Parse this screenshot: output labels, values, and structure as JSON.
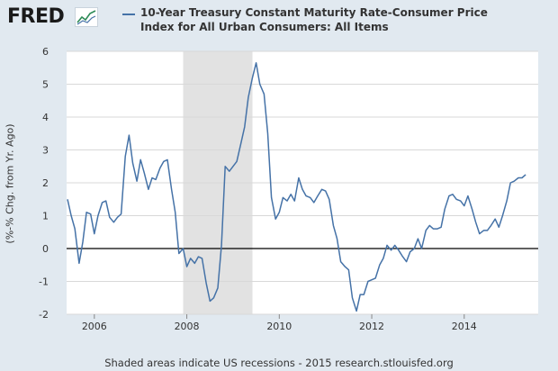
{
  "logo": {
    "text": "FRED",
    "icon": "line-chart-icon"
  },
  "legend": {
    "series_name": "10-Year Treasury Constant Maturity Rate-Consumer Price Index for All Urban Consumers: All Items",
    "color": "#4572a7"
  },
  "footer": {
    "text": "Shaded areas indicate US recessions - 2015 research.stlouisfed.org"
  },
  "chart_data": {
    "type": "line",
    "title": "",
    "xlabel": "",
    "ylabel": "(%-% Chg. from Yr. Ago)",
    "xlim": [
      2005.4,
      2015.6
    ],
    "ylim": [
      -2,
      6
    ],
    "y_ticks": [
      -2,
      -1,
      0,
      1,
      2,
      3,
      4,
      5,
      6
    ],
    "x_ticks": [
      "2006",
      "2008",
      "2010",
      "2012",
      "2014"
    ],
    "x_tick_values": [
      2006,
      2008,
      2010,
      2012,
      2014
    ],
    "grid": true,
    "zero_line": true,
    "recession": {
      "start": 2007.92,
      "end": 2009.42
    },
    "series": [
      {
        "name": "10-Year Treasury Constant Maturity Rate-Consumer Price Index for All Urban Consumers: All Items",
        "color": "#4572a7",
        "x": [
          2005.42,
          2005.5,
          2005.58,
          2005.67,
          2005.75,
          2005.83,
          2005.92,
          2006.0,
          2006.08,
          2006.17,
          2006.25,
          2006.33,
          2006.42,
          2006.5,
          2006.58,
          2006.67,
          2006.75,
          2006.83,
          2006.92,
          2007.0,
          2007.08,
          2007.17,
          2007.25,
          2007.33,
          2007.42,
          2007.5,
          2007.58,
          2007.67,
          2007.75,
          2007.83,
          2007.92,
          2008.0,
          2008.08,
          2008.17,
          2008.25,
          2008.33,
          2008.42,
          2008.5,
          2008.58,
          2008.67,
          2008.75,
          2008.83,
          2008.92,
          2009.0,
          2009.08,
          2009.17,
          2009.25,
          2009.33,
          2009.42,
          2009.5,
          2009.58,
          2009.67,
          2009.75,
          2009.83,
          2009.92,
          2010.0,
          2010.08,
          2010.17,
          2010.25,
          2010.33,
          2010.42,
          2010.5,
          2010.58,
          2010.67,
          2010.75,
          2010.83,
          2010.92,
          2011.0,
          2011.08,
          2011.17,
          2011.25,
          2011.33,
          2011.42,
          2011.5,
          2011.58,
          2011.67,
          2011.75,
          2011.83,
          2011.92,
          2012.0,
          2012.08,
          2012.17,
          2012.25,
          2012.33,
          2012.42,
          2012.5,
          2012.58,
          2012.67,
          2012.75,
          2012.83,
          2012.92,
          2013.0,
          2013.08,
          2013.17,
          2013.25,
          2013.33,
          2013.42,
          2013.5,
          2013.58,
          2013.67,
          2013.75,
          2013.83,
          2013.92,
          2014.0,
          2014.08,
          2014.17,
          2014.25,
          2014.33,
          2014.42,
          2014.5,
          2014.58,
          2014.67,
          2014.75,
          2014.83,
          2014.92,
          2015.0,
          2015.08,
          2015.17,
          2015.25,
          2015.33
        ],
        "y": [
          1.5,
          1.0,
          0.6,
          -0.45,
          0.2,
          1.1,
          1.05,
          0.45,
          1.0,
          1.4,
          1.45,
          0.95,
          0.8,
          0.95,
          1.05,
          2.8,
          3.45,
          2.6,
          2.05,
          2.7,
          2.3,
          1.8,
          2.15,
          2.1,
          2.45,
          2.65,
          2.7,
          1.8,
          1.1,
          -0.15,
          0.0,
          -0.55,
          -0.3,
          -0.45,
          -0.25,
          -0.3,
          -1.05,
          -1.6,
          -1.5,
          -1.2,
          0.1,
          2.5,
          2.35,
          2.5,
          2.65,
          3.2,
          3.7,
          4.6,
          5.2,
          5.65,
          5.0,
          4.7,
          3.5,
          1.55,
          0.9,
          1.1,
          1.55,
          1.45,
          1.65,
          1.45,
          2.15,
          1.8,
          1.6,
          1.55,
          1.4,
          1.6,
          1.8,
          1.75,
          1.5,
          0.7,
          0.3,
          -0.4,
          -0.55,
          -0.65,
          -1.5,
          -1.9,
          -1.4,
          -1.4,
          -1.0,
          -0.95,
          -0.9,
          -0.5,
          -0.3,
          0.1,
          -0.05,
          0.1,
          -0.05,
          -0.25,
          -0.4,
          -0.1,
          0.0,
          0.3,
          0.0,
          0.55,
          0.7,
          0.6,
          0.6,
          0.65,
          1.2,
          1.6,
          1.65,
          1.5,
          1.45,
          1.3,
          1.6,
          1.2,
          0.8,
          0.45,
          0.55,
          0.55,
          0.7,
          0.9,
          0.65,
          1.0,
          1.45,
          2.0,
          2.05,
          2.15,
          2.15,
          2.25
        ]
      }
    ]
  }
}
